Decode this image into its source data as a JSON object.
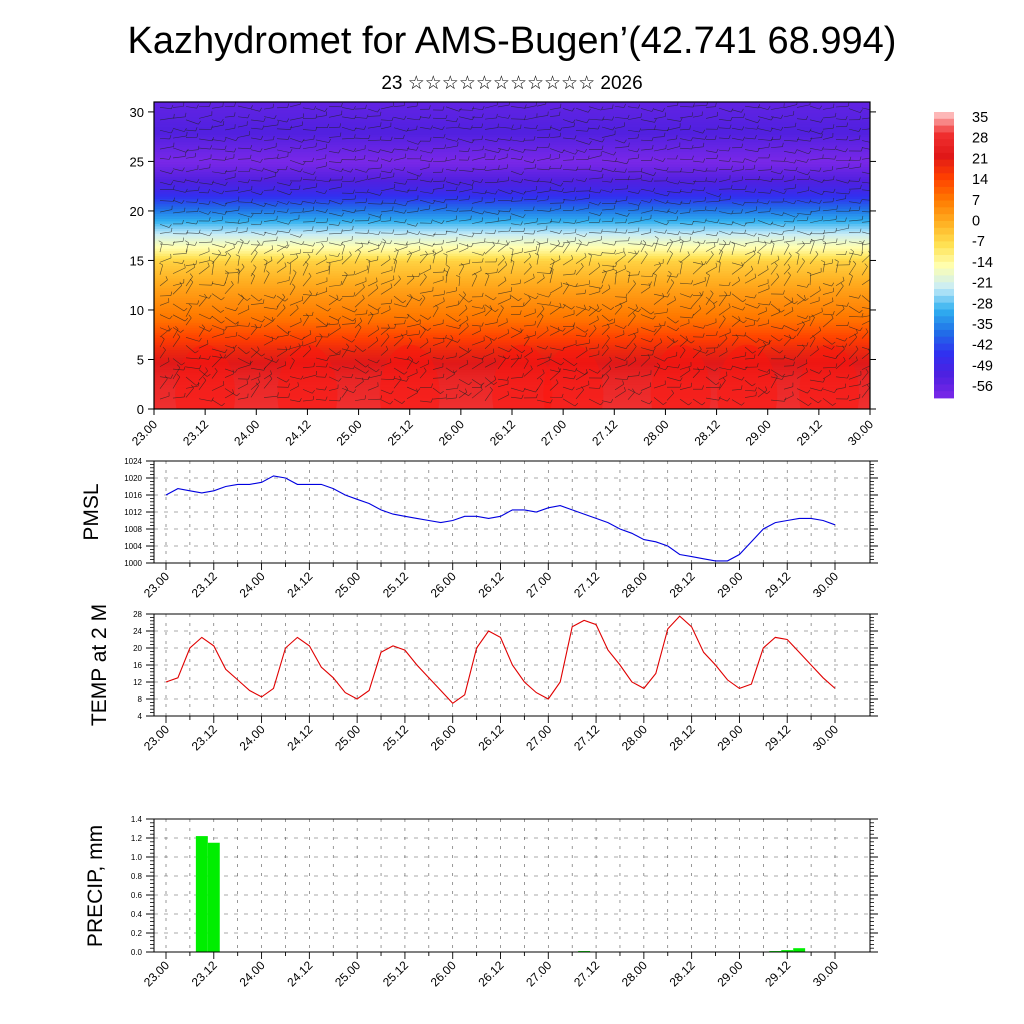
{
  "title": "Kazhydromet for AMS-Bugen’(42.741 68.994)",
  "subtitle": "23 ☆☆☆☆☆☆☆☆☆☆☆ 2026",
  "chart_data": [
    {
      "type": "heatmap",
      "name": "vertical-cross-section",
      "x_tick_labels": [
        "23.00",
        "23.12",
        "24.00",
        "24.12",
        "25.00",
        "25.12",
        "26.00",
        "26.12",
        "27.00",
        "27.12",
        "28.00",
        "28.12",
        "29.00",
        "29.12",
        "30.00"
      ],
      "y_ticks": [
        0,
        5,
        10,
        15,
        20,
        25,
        30
      ],
      "ylim": [
        0,
        31
      ],
      "temperature_profile": {
        "height": [
          0,
          3,
          6,
          9,
          12,
          15,
          16,
          17,
          19,
          22,
          25,
          28,
          31
        ],
        "value": [
          28,
          25,
          18,
          8,
          2,
          -5,
          -12,
          -17,
          -28,
          -45,
          -56,
          -49,
          -52
        ]
      },
      "wind_barbs": true,
      "colorbar": {
        "labels": [
          "35",
          "28",
          "21",
          "14",
          "7",
          "0",
          "-7",
          "-14",
          "-21",
          "-28",
          "-35",
          "-42",
          "-49",
          "-56"
        ],
        "colors": [
          "#ffd0d0",
          "#f03030",
          "#e01818",
          "#ff4000",
          "#ff7a00",
          "#ffae20",
          "#ffe050",
          "#ffffb0",
          "#c8ecf8",
          "#30b0f0",
          "#2070e8",
          "#3030f0",
          "#5020e0",
          "#7a28e8"
        ]
      }
    },
    {
      "type": "line",
      "name": "pmsl",
      "ylabel": "PMSL",
      "x_tick_labels": [
        "23.00",
        "23.12",
        "24.00",
        "24.12",
        "25.00",
        "25.12",
        "26.00",
        "26.12",
        "27.00",
        "27.12",
        "28.00",
        "28.12",
        "29.00",
        "29.12",
        "30.00"
      ],
      "y_ticks": [
        "1000",
        "1004",
        "1008",
        "1012",
        "1016",
        "1020",
        "1024"
      ],
      "ylim": [
        1000,
        1024
      ],
      "color": "#0000e0",
      "x_hours": [
        0,
        3,
        6,
        9,
        12,
        15,
        18,
        21,
        24,
        27,
        30,
        33,
        36,
        39,
        42,
        45,
        48,
        51,
        54,
        57,
        60,
        63,
        66,
        69,
        72,
        75,
        78,
        81,
        84,
        87,
        90,
        93,
        96,
        99,
        102,
        105,
        108,
        111,
        114,
        117,
        120,
        123,
        126,
        129,
        132,
        135,
        138,
        141,
        144,
        147,
        150,
        153,
        156,
        159,
        162,
        165,
        168
      ],
      "values": [
        1016,
        1017.5,
        1017,
        1016.5,
        1017,
        1018,
        1018.5,
        1018.5,
        1019,
        1020.5,
        1020,
        1018.5,
        1018.5,
        1018.5,
        1017.5,
        1016,
        1015,
        1014,
        1012.5,
        1011.5,
        1011,
        1010.5,
        1010,
        1009.5,
        1010,
        1011,
        1011,
        1010.5,
        1011,
        1012.5,
        1012.5,
        1012,
        1013,
        1013.5,
        1012.5,
        1011.5,
        1010.5,
        1009.5,
        1008,
        1007,
        1005.5,
        1005,
        1004,
        1002,
        1001.5,
        1001,
        1000.5,
        1000.5,
        1002,
        1005,
        1008,
        1009.5,
        1010,
        1010.5,
        1010.5,
        1010,
        1009
      ]
    },
    {
      "type": "line",
      "name": "temp-2m",
      "ylabel": "TEMP at 2 M",
      "x_tick_labels": [
        "23.00",
        "23.12",
        "24.00",
        "24.12",
        "25.00",
        "25.12",
        "26.00",
        "26.12",
        "27.00",
        "27.12",
        "28.00",
        "28.12",
        "29.00",
        "29.12",
        "30.00"
      ],
      "y_ticks": [
        "4",
        "8",
        "12",
        "16",
        "20",
        "24",
        "28"
      ],
      "ylim": [
        4,
        28
      ],
      "color": "#e00000",
      "x_hours": [
        0,
        3,
        6,
        9,
        12,
        15,
        18,
        21,
        24,
        27,
        30,
        33,
        36,
        39,
        42,
        45,
        48,
        51,
        54,
        57,
        60,
        63,
        66,
        69,
        72,
        75,
        78,
        81,
        84,
        87,
        90,
        93,
        96,
        99,
        102,
        105,
        108,
        111,
        114,
        117,
        120,
        123,
        126,
        129,
        132,
        135,
        138,
        141,
        144,
        147,
        150,
        153,
        156,
        159,
        162,
        165,
        168
      ],
      "values": [
        12,
        13,
        20,
        22.5,
        20.5,
        15,
        12.5,
        10,
        8.5,
        10.5,
        20,
        22.5,
        20.5,
        15.5,
        13,
        9.5,
        8,
        10,
        19,
        20.5,
        19.5,
        16,
        13,
        10,
        7,
        9,
        20,
        24,
        22.5,
        16,
        12,
        9.5,
        8,
        12,
        25,
        26.5,
        25.5,
        19.5,
        16,
        12,
        10.5,
        14,
        24.5,
        27.5,
        25,
        19,
        16,
        12.5,
        10.5,
        11.5,
        20,
        22.5,
        22,
        19,
        16,
        13,
        10.5
      ]
    },
    {
      "type": "bar",
      "name": "precip",
      "ylabel": "PRECIP, mm",
      "x_tick_labels": [
        "23.00",
        "23.12",
        "24.00",
        "24.12",
        "25.00",
        "25.12",
        "26.00",
        "26.12",
        "27.00",
        "27.12",
        "28.00",
        "28.12",
        "29.00",
        "29.12",
        "30.00"
      ],
      "y_ticks": [
        "0.0",
        "0.2",
        "0.4",
        "0.6",
        "0.8",
        "1.0",
        "1.2",
        "1.4"
      ],
      "ylim": [
        0,
        1.4
      ],
      "color": "#00ee00",
      "x_hours": [
        9,
        12,
        105,
        153,
        156,
        159
      ],
      "values": [
        1.22,
        1.15,
        0.01,
        0.01,
        0.02,
        0.04
      ]
    }
  ]
}
